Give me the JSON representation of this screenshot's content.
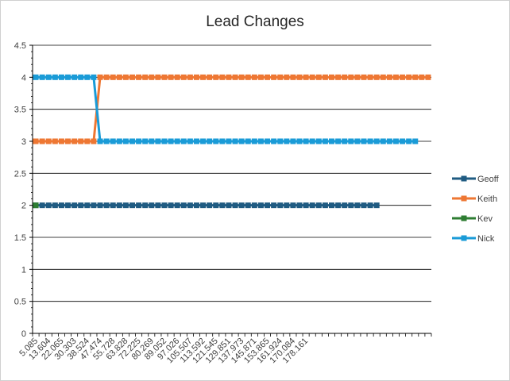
{
  "chart_data": {
    "type": "line",
    "title": "Lead Changes",
    "xlabel": "",
    "ylabel": "",
    "ylim": [
      0,
      4.5
    ],
    "y_ticks": [
      "0",
      "0.5",
      "1",
      "1.5",
      "2",
      "2.5",
      "3",
      "3.5",
      "4",
      "4.5"
    ],
    "x_ticks": [
      "5.085",
      "13.604",
      "22.065",
      "30.303",
      "38.524",
      "47.474",
      "55.728",
      "63.828",
      "72.225",
      "80.269",
      "89.052",
      "97.026",
      "105.507",
      "113.592",
      "121.545",
      "129.851",
      "137.973",
      "145.871",
      "153.865",
      "161.924",
      "170.084",
      "178.161"
    ],
    "n_x_slots": 62,
    "grid": true,
    "legend_position": "right",
    "series": [
      {
        "name": "Geoff",
        "color": "#1f5b82",
        "values": [
          2,
          2,
          2,
          2,
          2,
          2,
          2,
          2,
          2,
          2,
          2,
          2,
          2,
          2,
          2,
          2,
          2,
          2,
          2,
          2,
          2,
          2,
          2,
          2,
          2,
          2,
          2,
          2,
          2,
          2,
          2,
          2,
          2,
          2,
          2,
          2,
          2,
          2,
          2,
          2,
          2,
          2,
          2,
          2,
          2,
          2,
          2,
          2,
          2,
          2,
          2,
          2,
          2,
          2
        ]
      },
      {
        "name": "Keith",
        "color": "#ee7733",
        "values": [
          3,
          3,
          3,
          3,
          3,
          3,
          3,
          3,
          3,
          3,
          4,
          4,
          4,
          4,
          4,
          4,
          4,
          4,
          4,
          4,
          4,
          4,
          4,
          4,
          4,
          4,
          4,
          4,
          4,
          4,
          4,
          4,
          4,
          4,
          4,
          4,
          4,
          4,
          4,
          4,
          4,
          4,
          4,
          4,
          4,
          4,
          4,
          4,
          4,
          4,
          4,
          4,
          4,
          4,
          4,
          4,
          4,
          4,
          4,
          4,
          4,
          4
        ]
      },
      {
        "name": "Kev",
        "color": "#2e7d32",
        "values": [
          2
        ]
      },
      {
        "name": "Nick",
        "color": "#1a9bd7",
        "values": [
          4,
          4,
          4,
          4,
          4,
          4,
          4,
          4,
          4,
          4,
          3,
          3,
          3,
          3,
          3,
          3,
          3,
          3,
          3,
          3,
          3,
          3,
          3,
          3,
          3,
          3,
          3,
          3,
          3,
          3,
          3,
          3,
          3,
          3,
          3,
          3,
          3,
          3,
          3,
          3,
          3,
          3,
          3,
          3,
          3,
          3,
          3,
          3,
          3,
          3,
          3,
          3,
          3,
          3,
          3,
          3,
          3,
          3,
          3,
          3
        ]
      }
    ]
  }
}
